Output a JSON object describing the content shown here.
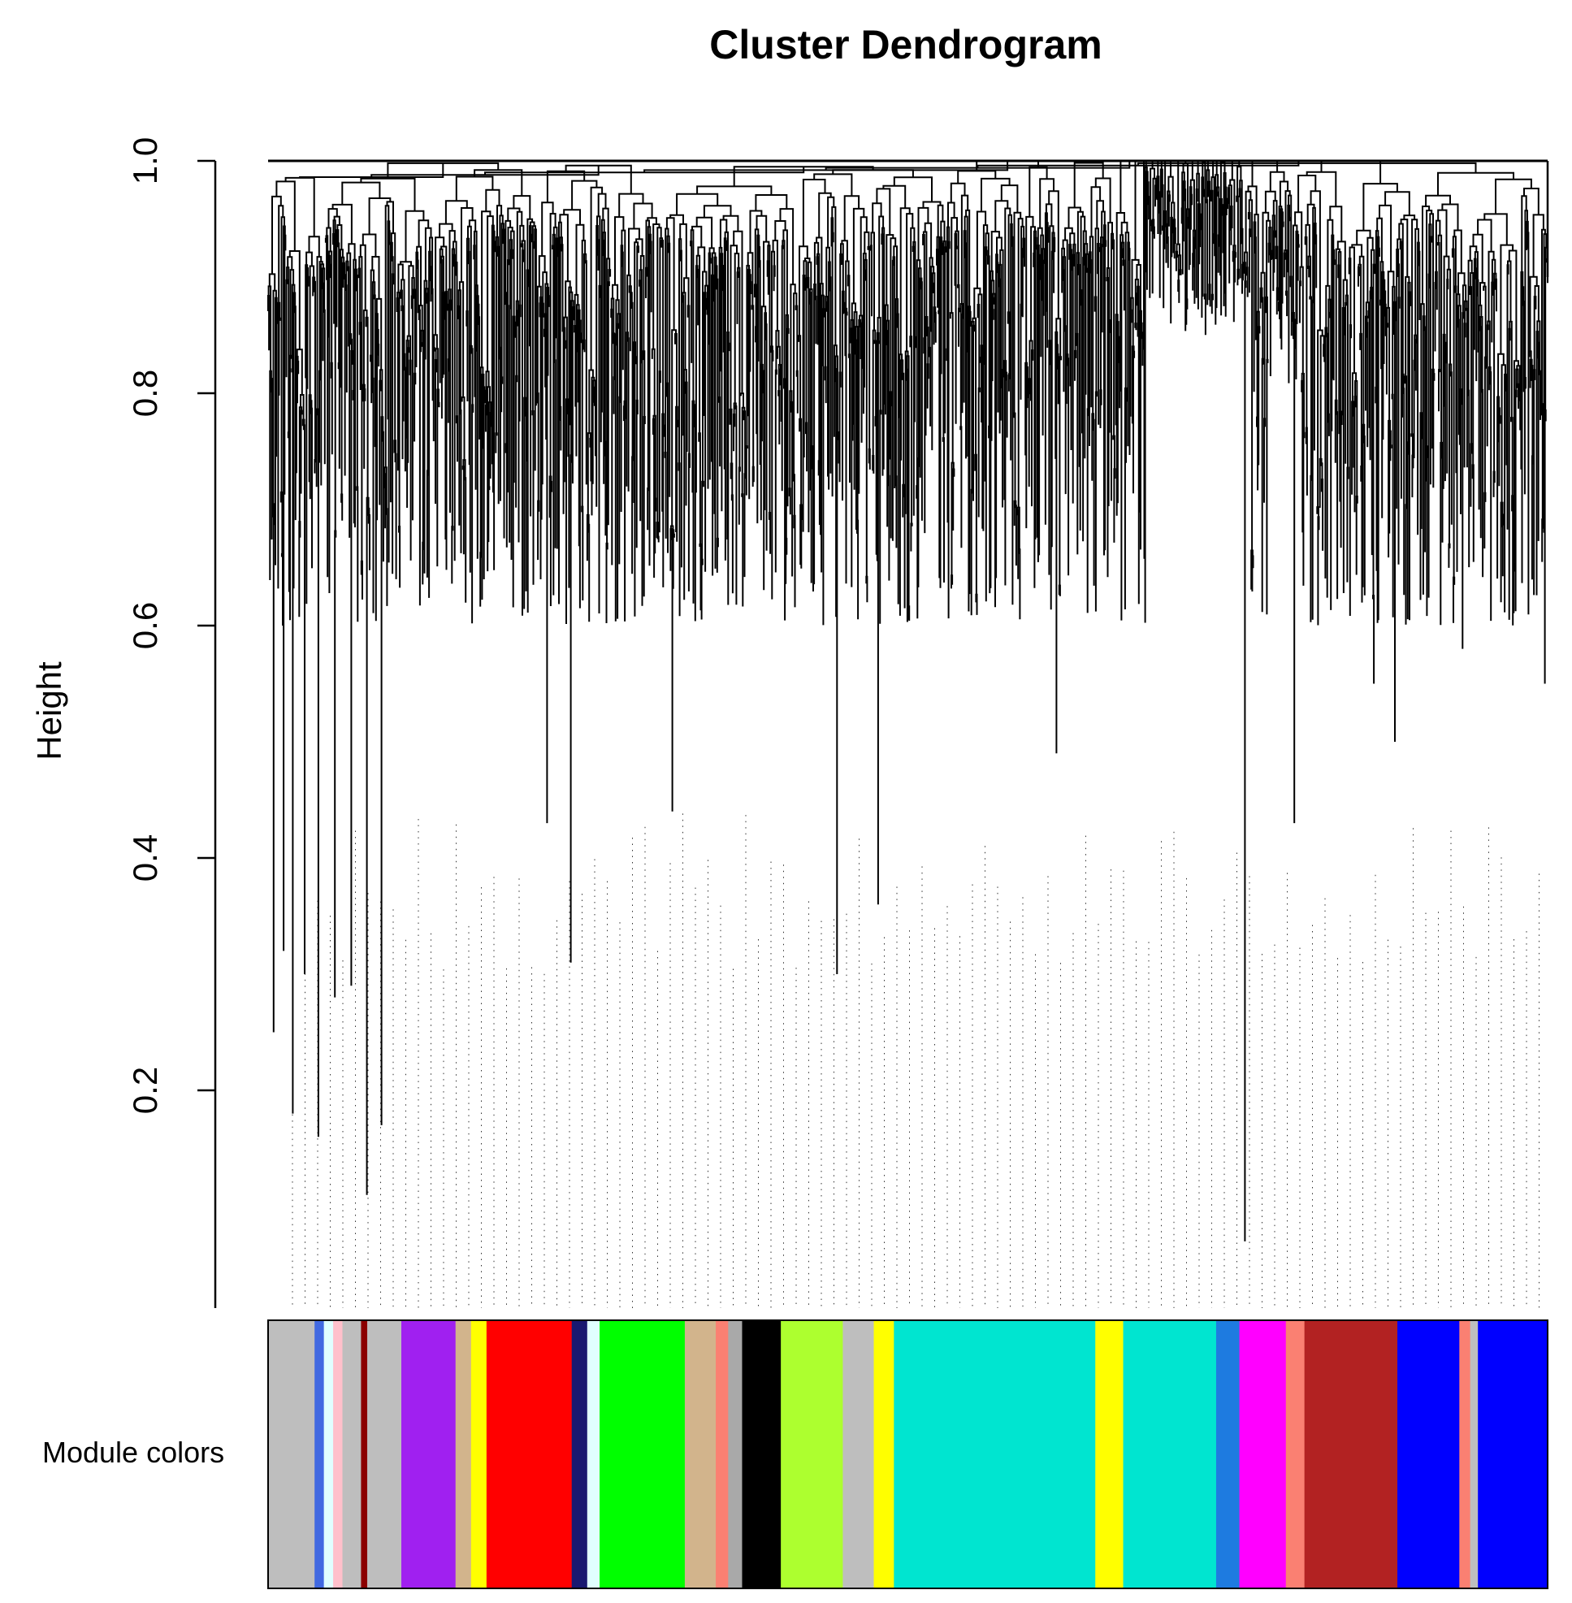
{
  "chart_data": {
    "type": "dendrogram",
    "title": "Cluster Dendrogram",
    "ylabel": "Height",
    "xlabel": "",
    "ylim": [
      0.0,
      1.0
    ],
    "yticks": [
      {
        "value": 0.2,
        "label": "0.2"
      },
      {
        "value": 0.4,
        "label": "0.4"
      },
      {
        "value": 0.6,
        "label": "0.6"
      },
      {
        "value": 0.8,
        "label": "0.8"
      },
      {
        "value": 1.0,
        "label": "1.0"
      }
    ],
    "color_bar_label": "Module colors",
    "top_merge_height": 1.0,
    "deep_leaf_heights_left": [
      0.25,
      0.32,
      0.18,
      0.3,
      0.16,
      0.28,
      0.29,
      0.11,
      0.17
    ],
    "deep_leaf_heights_middle": [
      0.43,
      0.31,
      0.44,
      0.3,
      0.36,
      0.49
    ],
    "deep_leaf_heights_right": [
      0.07,
      0.43,
      0.55,
      0.5,
      0.58,
      0.55
    ],
    "modules": [
      {
        "name": "grey",
        "color": "#bebebe",
        "weight": 3.0
      },
      {
        "name": "royalblue",
        "color": "#4169e1",
        "weight": 0.6
      },
      {
        "name": "lightcyan",
        "color": "#e0ffff",
        "weight": 0.6
      },
      {
        "name": "pink",
        "color": "#ffc0cb",
        "weight": 0.6
      },
      {
        "name": "grey",
        "color": "#bebebe",
        "weight": 1.2
      },
      {
        "name": "darkred",
        "color": "#8b0000",
        "weight": 0.4
      },
      {
        "name": "grey",
        "color": "#bebebe",
        "weight": 2.2
      },
      {
        "name": "purple",
        "color": "#a020f0",
        "weight": 3.5
      },
      {
        "name": "tan",
        "color": "#d2b48c",
        "weight": 1.0
      },
      {
        "name": "yellow",
        "color": "#ffff00",
        "weight": 1.0
      },
      {
        "name": "red",
        "color": "#ff0000",
        "weight": 5.5
      },
      {
        "name": "midnightblue",
        "color": "#191970",
        "weight": 1.0
      },
      {
        "name": "lightcyan",
        "color": "#e0ffff",
        "weight": 0.8
      },
      {
        "name": "green",
        "color": "#00ff00",
        "weight": 5.5
      },
      {
        "name": "tan",
        "color": "#d2b48c",
        "weight": 2.0
      },
      {
        "name": "salmon",
        "color": "#fa8072",
        "weight": 0.8
      },
      {
        "name": "darkgrey",
        "color": "#a9a9a9",
        "weight": 0.9
      },
      {
        "name": "black",
        "color": "#000000",
        "weight": 2.5
      },
      {
        "name": "greenyellow",
        "color": "#adff2f",
        "weight": 4.0
      },
      {
        "name": "grey",
        "color": "#bebebe",
        "weight": 2.0
      },
      {
        "name": "yellow",
        "color": "#ffff00",
        "weight": 1.3
      },
      {
        "name": "turquoise",
        "color": "#00e5d0",
        "weight": 13.0
      },
      {
        "name": "yellow",
        "color": "#ffff00",
        "weight": 1.8
      },
      {
        "name": "turquoise",
        "color": "#00e5d0",
        "weight": 6.0
      },
      {
        "name": "blue",
        "color": "#1e7be0",
        "weight": 1.5
      },
      {
        "name": "magenta",
        "color": "#ff00ff",
        "weight": 3.0
      },
      {
        "name": "salmon",
        "color": "#fa8072",
        "weight": 1.2
      },
      {
        "name": "firebrick",
        "color": "#b22222",
        "weight": 6.0
      },
      {
        "name": "blue",
        "color": "#0000ff",
        "weight": 4.0
      },
      {
        "name": "salmon",
        "color": "#fa8072",
        "weight": 0.7
      },
      {
        "name": "grey",
        "color": "#bebebe",
        "weight": 0.5
      },
      {
        "name": "blue",
        "color": "#0000ff",
        "weight": 4.5
      }
    ]
  }
}
